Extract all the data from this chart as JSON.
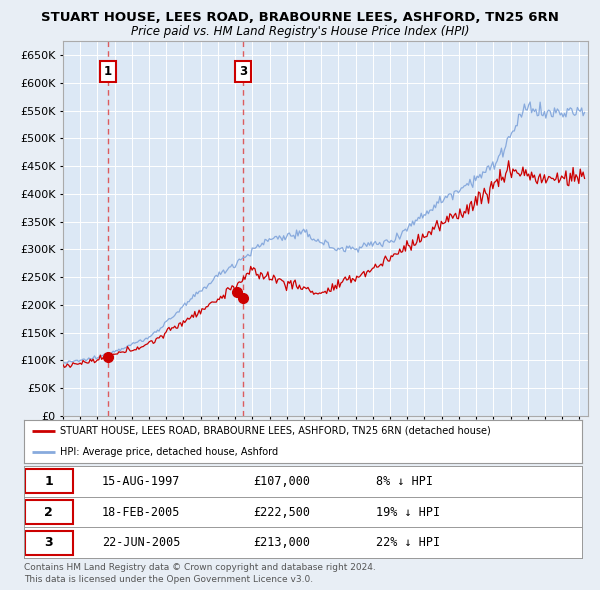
{
  "title": "STUART HOUSE, LEES ROAD, BRABOURNE LEES, ASHFORD, TN25 6RN",
  "subtitle": "Price paid vs. HM Land Registry's House Price Index (HPI)",
  "ylim": [
    0,
    675000
  ],
  "yticks": [
    0,
    50000,
    100000,
    150000,
    200000,
    250000,
    300000,
    350000,
    400000,
    450000,
    500000,
    550000,
    600000,
    650000
  ],
  "xlim_start": 1995.0,
  "xlim_end": 2025.5,
  "bg_color": "#e8eef5",
  "plot_bg_color": "#dce8f5",
  "grid_color": "#c8d8e8",
  "sale_color": "#cc0000",
  "hpi_color": "#88aadd",
  "legend_entry1": "STUART HOUSE, LEES ROAD, BRABOURNE LEES, ASHFORD, TN25 6RN (detached house)",
  "legend_entry2": "HPI: Average price, detached house, Ashford",
  "sales": [
    {
      "num": 1,
      "date": "15-AUG-1997",
      "price": 107000,
      "year": 1997.62,
      "label": "1"
    },
    {
      "num": 2,
      "date": "18-FEB-2005",
      "price": 222500,
      "year": 2005.12,
      "label": "2"
    },
    {
      "num": 3,
      "date": "22-JUN-2005",
      "price": 213000,
      "year": 2005.47,
      "label": "3"
    }
  ],
  "table_rows": [
    {
      "num": "1",
      "date": "15-AUG-1997",
      "price": "£107,000",
      "pct": "8% ↓ HPI"
    },
    {
      "num": "2",
      "date": "18-FEB-2005",
      "price": "£222,500",
      "pct": "19% ↓ HPI"
    },
    {
      "num": "3",
      "date": "22-JUN-2005",
      "price": "£213,000",
      "pct": "22% ↓ HPI"
    }
  ],
  "footer1": "Contains HM Land Registry data © Crown copyright and database right 2024.",
  "footer2": "This data is licensed under the Open Government Licence v3.0."
}
